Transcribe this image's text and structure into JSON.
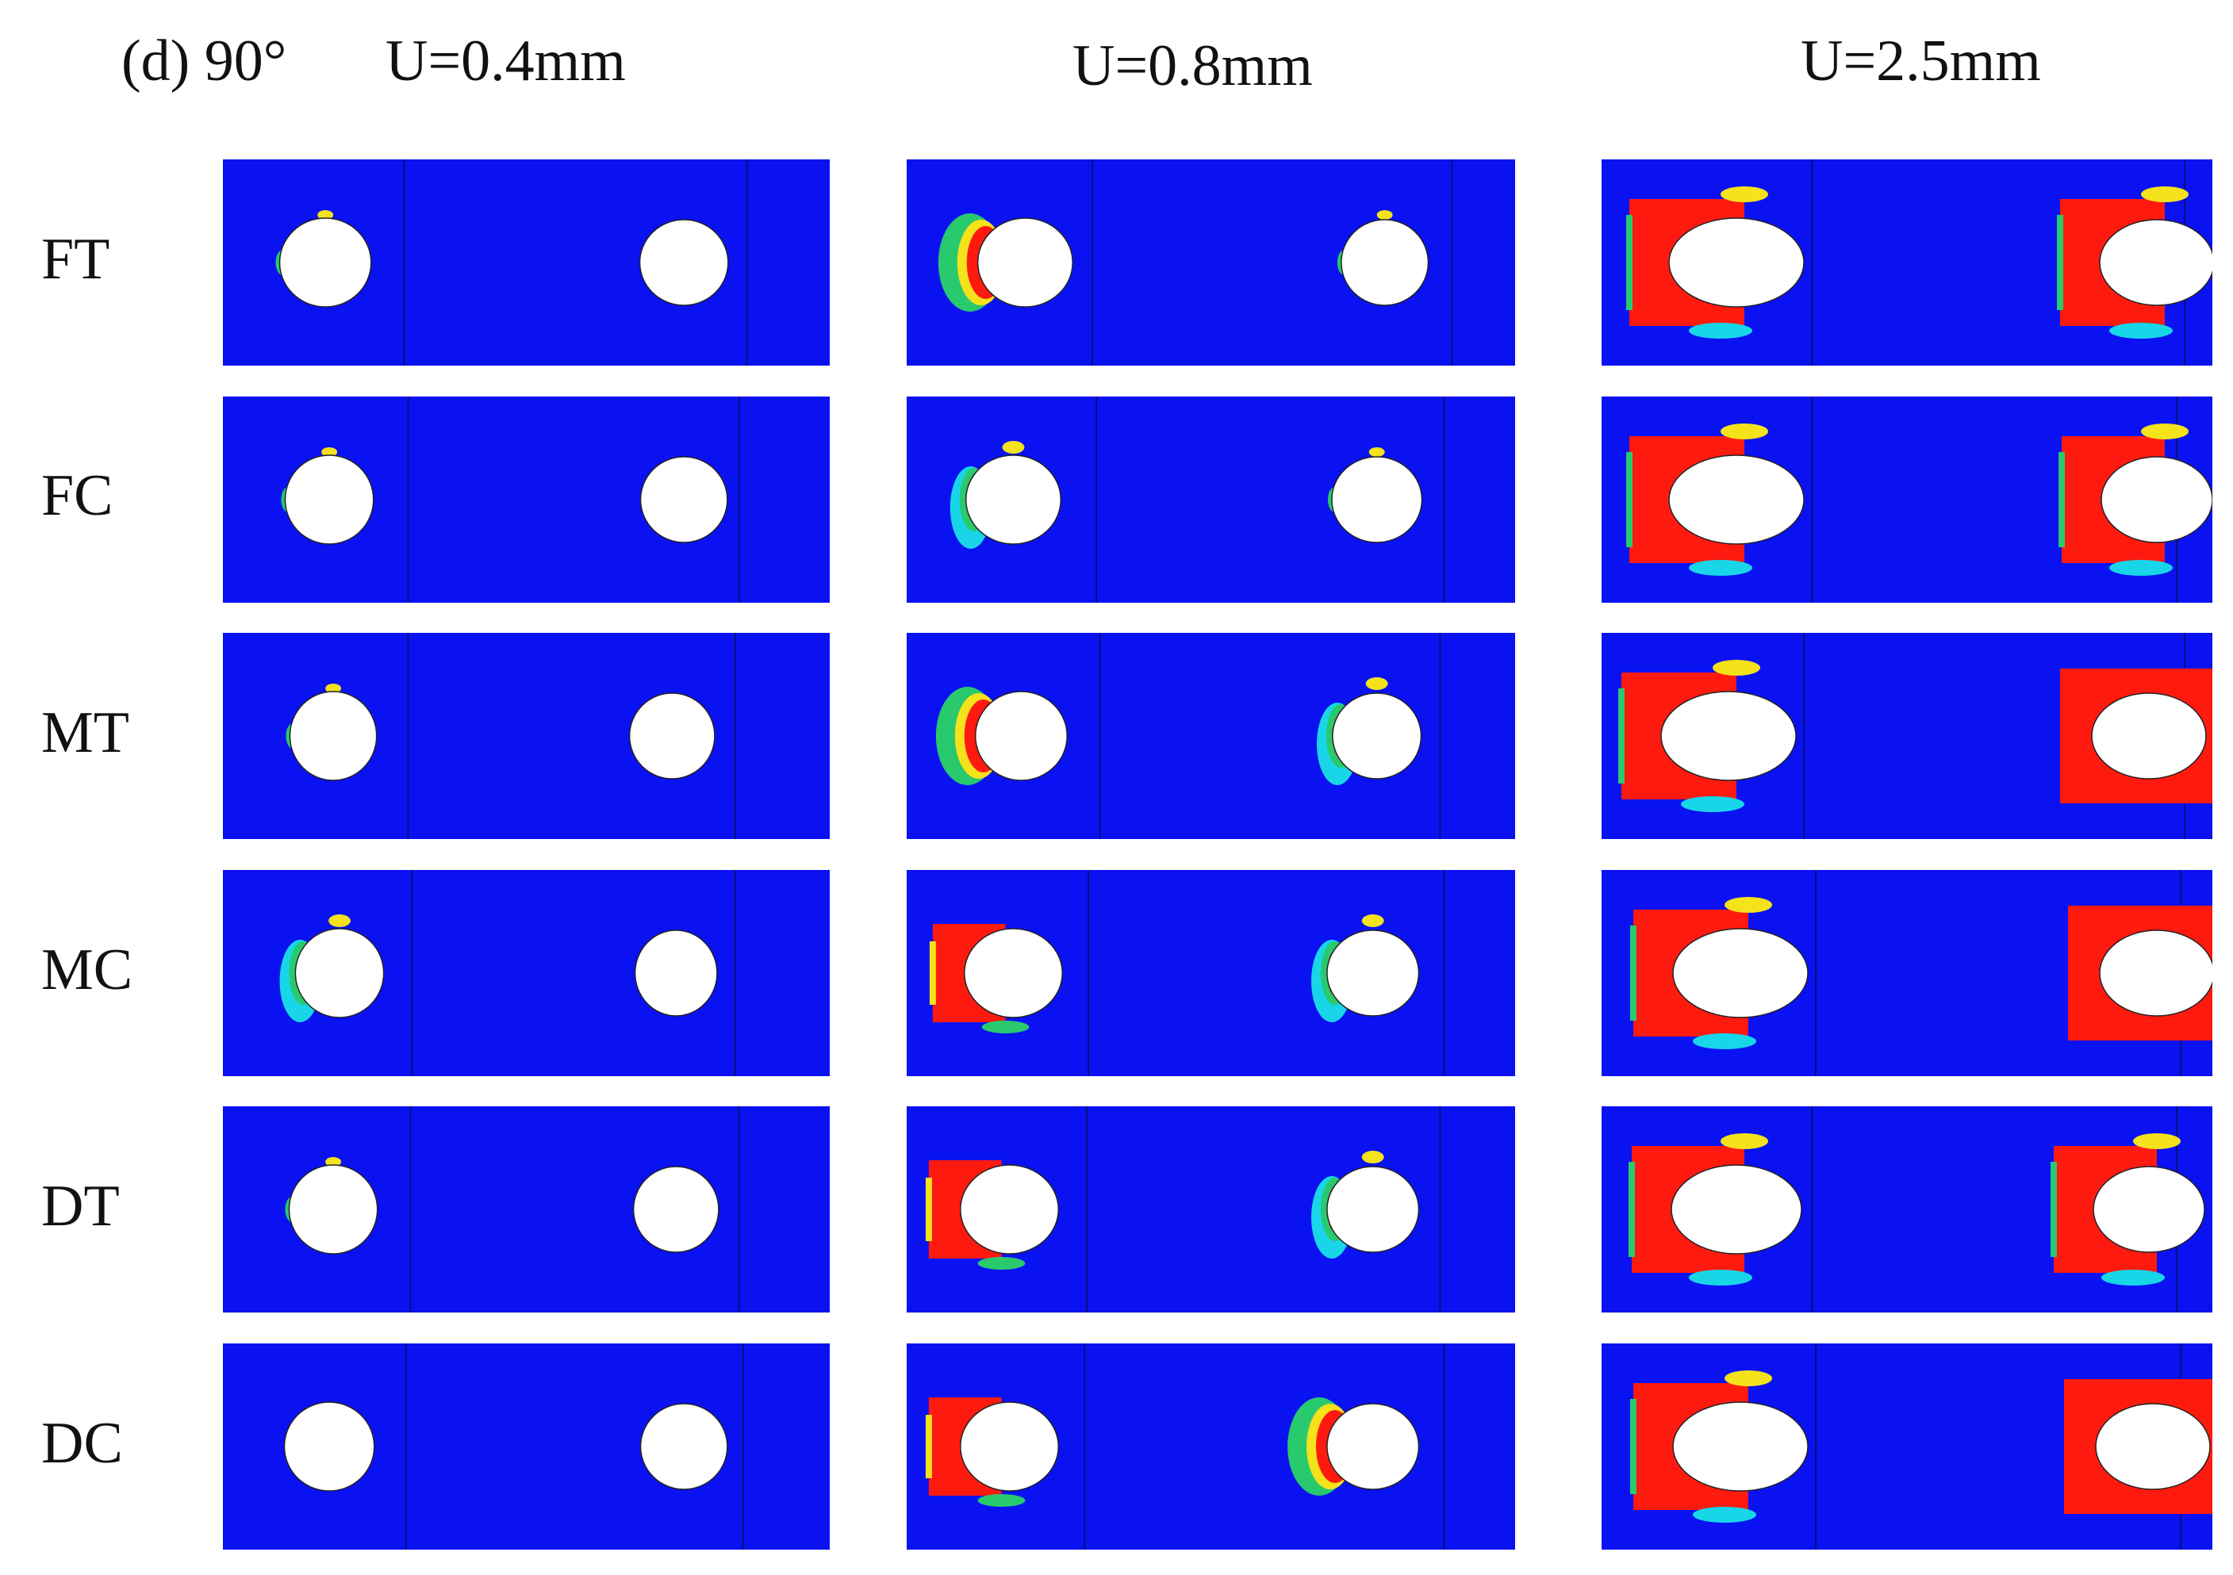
{
  "figure": {
    "panel_label": "(d) 90°",
    "columns": [
      "U=0.4mm",
      "U=0.8mm",
      "U=2.5mm"
    ],
    "rows": [
      "FT",
      "FC",
      "MT",
      "MC",
      "DT",
      "DC"
    ]
  },
  "colors": {
    "background": "#0a12f2",
    "damage": "#ff1a10",
    "transition_yellow": "#f4e21a",
    "transition_green": "#29c96e",
    "transition_cyan": "#18d6e8",
    "hole": "#ffffff"
  }
}
